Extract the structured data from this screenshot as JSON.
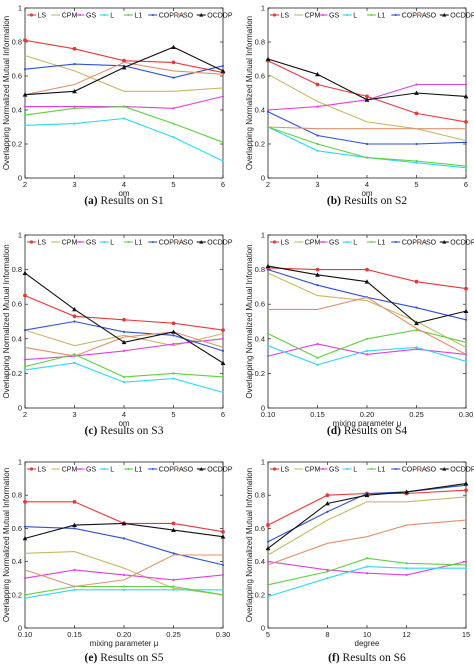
{
  "series_styles": [
    {
      "name": "LS",
      "color": "#e8383c",
      "marker": "circle"
    },
    {
      "name": "CPM",
      "color": "#c8b86a",
      "marker": "none"
    },
    {
      "name": "GS",
      "color": "#e040e0",
      "marker": "dot"
    },
    {
      "name": "L",
      "color": "#30d8f0",
      "marker": "dot"
    },
    {
      "name": "L1",
      "color": "#60d040",
      "marker": "dot"
    },
    {
      "name": "COPRA",
      "color": "#3050d8",
      "marker": "dot"
    },
    {
      "name": "SO",
      "color": "#e09070",
      "marker": "none"
    },
    {
      "name": "OCDDP",
      "color": "#111111",
      "marker": "triangle"
    }
  ],
  "chart_data": [
    {
      "type": "line",
      "caption_label": "(a)",
      "caption_text": "Results on S1",
      "xlabel": "om",
      "ylabel": "Overlapping Normalized Mutual Information",
      "x": [
        2,
        3,
        4,
        5,
        6
      ],
      "x_ticks": [
        2,
        3,
        4,
        5,
        6
      ],
      "x_tick_labels": [
        "2",
        "3",
        "4",
        "5",
        "6"
      ],
      "xlim": [
        2,
        6
      ],
      "ylim": [
        0,
        1
      ],
      "y_ticks": [
        0,
        0.2,
        0.4,
        0.6,
        0.8,
        1
      ],
      "y_tick_labels": [
        "0",
        "0.2",
        "0.4",
        "0.6",
        "0.8",
        "1"
      ],
      "series": [
        {
          "name": "LS",
          "values": [
            0.81,
            0.76,
            0.69,
            0.68,
            0.62
          ]
        },
        {
          "name": "CPM",
          "values": [
            0.72,
            0.63,
            0.51,
            0.51,
            0.53
          ]
        },
        {
          "name": "GS",
          "values": [
            0.42,
            0.42,
            0.42,
            0.41,
            0.48
          ]
        },
        {
          "name": "L",
          "values": [
            0.31,
            0.32,
            0.35,
            0.24,
            0.1
          ]
        },
        {
          "name": "L1",
          "values": [
            0.37,
            0.41,
            0.42,
            0.32,
            0.21
          ]
        },
        {
          "name": "COPRA",
          "values": [
            0.64,
            0.67,
            0.66,
            0.59,
            0.66
          ]
        },
        {
          "name": "SO",
          "values": [
            0.49,
            0.55,
            0.68,
            0.63,
            0.61
          ]
        },
        {
          "name": "OCDDP",
          "values": [
            0.49,
            0.51,
            0.65,
            0.77,
            0.63
          ]
        }
      ]
    },
    {
      "type": "line",
      "caption_label": "(b)",
      "caption_text": "Results on S2",
      "xlabel": "om",
      "ylabel": "Overlapping Normalized Mutual Information",
      "x": [
        2,
        3,
        4,
        5,
        6
      ],
      "x_ticks": [
        2,
        3,
        4,
        5,
        6
      ],
      "x_tick_labels": [
        "2",
        "3",
        "4",
        "5",
        "6"
      ],
      "xlim": [
        2,
        6
      ],
      "ylim": [
        0,
        1
      ],
      "y_ticks": [
        0,
        0.2,
        0.4,
        0.6,
        0.8,
        1
      ],
      "y_tick_labels": [
        "0",
        "0.2",
        "0.4",
        "0.6",
        "0.8",
        "1"
      ],
      "series": [
        {
          "name": "LS",
          "values": [
            0.69,
            0.55,
            0.48,
            0.38,
            0.33
          ]
        },
        {
          "name": "CPM",
          "values": [
            0.61,
            0.45,
            0.33,
            0.29,
            0.22
          ]
        },
        {
          "name": "GS",
          "values": [
            0.4,
            0.42,
            0.46,
            0.55,
            0.55
          ]
        },
        {
          "name": "L",
          "values": [
            0.3,
            0.16,
            0.12,
            0.09,
            0.06
          ]
        },
        {
          "name": "L1",
          "values": [
            0.3,
            0.2,
            0.12,
            0.1,
            0.07
          ]
        },
        {
          "name": "COPRA",
          "values": [
            0.39,
            0.25,
            0.2,
            0.2,
            0.21
          ]
        },
        {
          "name": "SO",
          "values": [
            0.3,
            0.29,
            0.29,
            0.29,
            0.29
          ]
        },
        {
          "name": "OCDDP",
          "values": [
            0.7,
            0.61,
            0.46,
            0.5,
            0.48
          ]
        }
      ]
    },
    {
      "type": "line",
      "caption_label": "(c)",
      "caption_text": "Results on S3",
      "xlabel": "om",
      "ylabel": "Overlapping Normalized Mutual Information",
      "x": [
        2,
        3,
        4,
        5,
        6
      ],
      "x_ticks": [
        2,
        3,
        4,
        5,
        6
      ],
      "x_tick_labels": [
        "2",
        "3",
        "4",
        "5",
        "6"
      ],
      "xlim": [
        2,
        6
      ],
      "ylim": [
        0,
        1
      ],
      "y_ticks": [
        0,
        0.2,
        0.4,
        0.6,
        0.8,
        1
      ],
      "y_tick_labels": [
        "0",
        "0.2",
        "0.4",
        "0.6",
        "0.8",
        "1"
      ],
      "series": [
        {
          "name": "LS",
          "values": [
            0.65,
            0.53,
            0.51,
            0.49,
            0.45
          ]
        },
        {
          "name": "CPM",
          "values": [
            0.45,
            0.36,
            0.42,
            0.36,
            0.43
          ]
        },
        {
          "name": "GS",
          "values": [
            0.28,
            0.3,
            0.33,
            0.37,
            0.4
          ]
        },
        {
          "name": "L",
          "values": [
            0.22,
            0.26,
            0.15,
            0.17,
            0.09
          ]
        },
        {
          "name": "L1",
          "values": [
            0.24,
            0.31,
            0.18,
            0.2,
            0.18
          ]
        },
        {
          "name": "COPRA",
          "values": [
            0.45,
            0.5,
            0.44,
            0.42,
            0.33
          ]
        },
        {
          "name": "SO",
          "values": [
            0.35,
            0.3,
            0.41,
            0.44,
            0.35
          ]
        },
        {
          "name": "OCDDP",
          "values": [
            0.78,
            0.57,
            0.38,
            0.44,
            0.26
          ]
        }
      ]
    },
    {
      "type": "line",
      "caption_label": "(d)",
      "caption_text": "Results on S4",
      "xlabel": "mixing parameter μ",
      "ylabel": "Overlapping Normalized Mutual Information",
      "x": [
        0.1,
        0.15,
        0.2,
        0.25,
        0.3
      ],
      "x_ticks": [
        0.1,
        0.15,
        0.2,
        0.25,
        0.3
      ],
      "x_tick_labels": [
        "0.10",
        "0.15",
        "0.20",
        "0.25",
        "0.30"
      ],
      "xlim": [
        0.1,
        0.3
      ],
      "ylim": [
        0,
        1
      ],
      "y_ticks": [
        0,
        0.2,
        0.4,
        0.6,
        0.8,
        1
      ],
      "y_tick_labels": [
        "0",
        "0.2",
        "0.4",
        "0.6",
        "0.8",
        "1"
      ],
      "series": [
        {
          "name": "LS",
          "values": [
            0.81,
            0.8,
            0.8,
            0.73,
            0.69
          ]
        },
        {
          "name": "CPM",
          "values": [
            0.78,
            0.65,
            0.62,
            0.5,
            0.35
          ]
        },
        {
          "name": "GS",
          "values": [
            0.3,
            0.37,
            0.31,
            0.34,
            0.31
          ]
        },
        {
          "name": "L",
          "values": [
            0.36,
            0.25,
            0.33,
            0.35,
            0.27
          ]
        },
        {
          "name": "L1",
          "values": [
            0.43,
            0.29,
            0.4,
            0.45,
            0.38
          ]
        },
        {
          "name": "COPRA",
          "values": [
            0.8,
            0.71,
            0.64,
            0.58,
            0.51
          ]
        },
        {
          "name": "SO",
          "values": [
            0.57,
            0.57,
            0.64,
            0.46,
            0.31
          ]
        },
        {
          "name": "OCDDP",
          "values": [
            0.82,
            0.77,
            0.73,
            0.49,
            0.56
          ]
        }
      ]
    },
    {
      "type": "line",
      "caption_label": "(e)",
      "caption_text": "Results on S5",
      "xlabel": "mixing parameter μ",
      "ylabel": "Overlapping Normalized Mutual Information",
      "x": [
        0.1,
        0.15,
        0.2,
        0.25,
        0.3
      ],
      "x_ticks": [
        0.1,
        0.15,
        0.2,
        0.25,
        0.3
      ],
      "x_tick_labels": [
        "0.10",
        "0.15",
        "0.20",
        "0.25",
        "0.30"
      ],
      "xlim": [
        0.1,
        0.3
      ],
      "ylim": [
        0,
        1
      ],
      "y_ticks": [
        0,
        0.2,
        0.4,
        0.6,
        0.8,
        1
      ],
      "y_tick_labels": [
        "0",
        "0.2",
        "0.4",
        "0.6",
        "0.8",
        "1"
      ],
      "series": [
        {
          "name": "LS",
          "values": [
            0.76,
            0.76,
            0.63,
            0.63,
            0.58
          ]
        },
        {
          "name": "CPM",
          "values": [
            0.45,
            0.46,
            0.36,
            0.24,
            0.2
          ]
        },
        {
          "name": "GS",
          "values": [
            0.3,
            0.35,
            0.32,
            0.29,
            0.32
          ]
        },
        {
          "name": "L",
          "values": [
            0.18,
            0.23,
            0.23,
            0.23,
            0.23
          ]
        },
        {
          "name": "L1",
          "values": [
            0.2,
            0.25,
            0.25,
            0.25,
            0.2
          ]
        },
        {
          "name": "COPRA",
          "values": [
            0.61,
            0.6,
            0.54,
            0.45,
            0.38
          ]
        },
        {
          "name": "SO",
          "values": [
            0.35,
            0.25,
            0.29,
            0.44,
            0.44
          ]
        },
        {
          "name": "OCDDP",
          "values": [
            0.54,
            0.62,
            0.63,
            0.59,
            0.55
          ]
        }
      ]
    },
    {
      "type": "line",
      "caption_label": "(f)",
      "caption_text": "Results on S6",
      "xlabel": "degree",
      "ylabel": "Overlapping Normalized Mutual Information",
      "x": [
        5,
        8,
        10,
        12,
        15
      ],
      "x_ticks": [
        5,
        8,
        10,
        12,
        15
      ],
      "x_tick_labels": [
        "5",
        "8",
        "10",
        "12",
        "15"
      ],
      "xlim": [
        5,
        15
      ],
      "ylim": [
        0,
        1
      ],
      "y_ticks": [
        0,
        0.2,
        0.4,
        0.6,
        0.8,
        1
      ],
      "y_tick_labels": [
        "0",
        "0.2",
        "0.4",
        "0.6",
        "0.8",
        "1"
      ],
      "series": [
        {
          "name": "LS",
          "values": [
            0.62,
            0.8,
            0.81,
            0.81,
            0.83
          ]
        },
        {
          "name": "CPM",
          "values": [
            0.44,
            0.65,
            0.76,
            0.76,
            0.79
          ]
        },
        {
          "name": "GS",
          "values": [
            0.4,
            0.35,
            0.33,
            0.32,
            0.4
          ]
        },
        {
          "name": "L",
          "values": [
            0.19,
            0.3,
            0.37,
            0.36,
            0.36
          ]
        },
        {
          "name": "L1",
          "values": [
            0.26,
            0.34,
            0.42,
            0.39,
            0.38
          ]
        },
        {
          "name": "COPRA",
          "values": [
            0.52,
            0.7,
            0.81,
            0.82,
            0.86
          ]
        },
        {
          "name": "SO",
          "values": [
            0.38,
            0.51,
            0.55,
            0.62,
            0.65
          ]
        },
        {
          "name": "OCDDP",
          "values": [
            0.48,
            0.75,
            0.8,
            0.82,
            0.87
          ]
        }
      ]
    }
  ]
}
